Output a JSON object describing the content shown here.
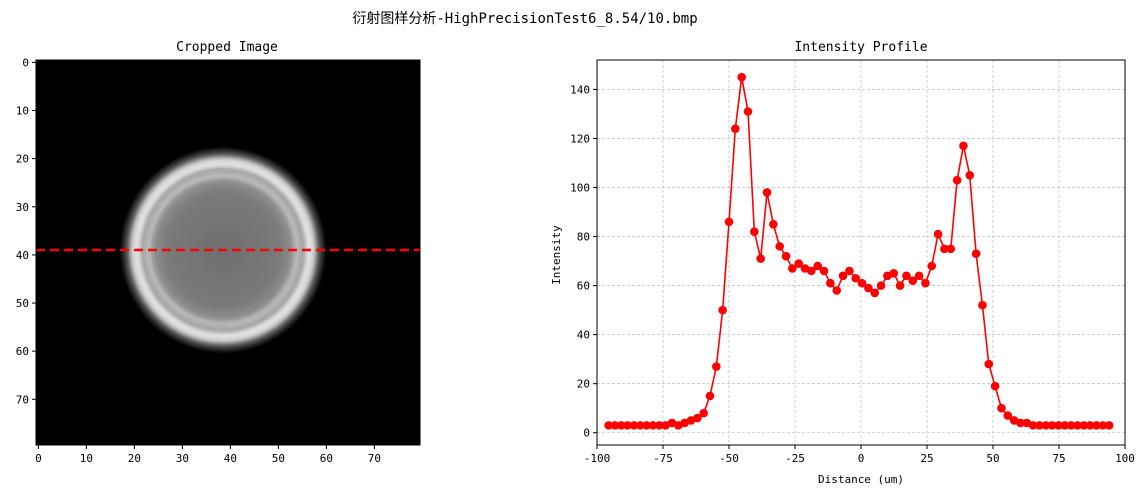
{
  "figure": {
    "suptitle": "衍射图样分析-HighPrecisionTest6_8.54/10.bmp"
  },
  "image_panel": {
    "title": "Cropped Image",
    "x_ticks": [
      "0",
      "10",
      "20",
      "30",
      "40",
      "50",
      "60",
      "70"
    ],
    "y_ticks": [
      "0",
      "10",
      "20",
      "30",
      "40",
      "50",
      "60",
      "70"
    ],
    "image_size": 80,
    "ring_center": [
      40,
      40
    ],
    "cut_row": 39,
    "line_color": "#ff0000"
  },
  "chart_data": {
    "type": "line",
    "title": "Intensity Profile",
    "xlabel": "Distance (um)",
    "ylabel": "Intensity",
    "xlim": [
      -100,
      100
    ],
    "ylim": [
      -5,
      152
    ],
    "x_ticks": [
      -100,
      -75,
      -50,
      -25,
      0,
      25,
      50,
      75,
      100
    ],
    "y_ticks": [
      0,
      20,
      40,
      60,
      80,
      100,
      120,
      140
    ],
    "grid": true,
    "color": "#ff0000",
    "marker": "circle",
    "x": [
      -95.6,
      -93.2,
      -90.8,
      -88.4,
      -86.0,
      -83.6,
      -81.2,
      -78.8,
      -76.4,
      -74.0,
      -71.6,
      -69.2,
      -66.8,
      -64.4,
      -62.0,
      -59.6,
      -57.2,
      -54.8,
      -52.4,
      -50.0,
      -47.6,
      -45.2,
      -42.8,
      -40.4,
      -38.0,
      -35.6,
      -33.2,
      -30.8,
      -28.4,
      -26.0,
      -23.6,
      -21.2,
      -18.8,
      -16.4,
      -14.0,
      -11.6,
      -9.2,
      -6.8,
      -4.4,
      -2.0,
      0.4,
      2.8,
      5.2,
      7.6,
      10.0,
      12.4,
      14.8,
      17.2,
      19.6,
      22.0,
      24.4,
      26.8,
      29.2,
      31.6,
      34.0,
      36.4,
      38.8,
      41.2,
      43.6,
      46.0,
      48.4,
      50.8,
      53.2,
      55.6,
      58.0,
      60.4,
      62.8,
      65.2,
      67.6,
      70.0,
      72.4,
      74.8,
      77.2,
      79.6,
      82.0,
      84.4,
      86.8,
      89.2,
      91.6,
      94.0
    ],
    "values": [
      3,
      3,
      3,
      3,
      3,
      3,
      3,
      3,
      3,
      3,
      4,
      3,
      4,
      5,
      6,
      8,
      15,
      27,
      50,
      86,
      124,
      145,
      131,
      82,
      71,
      98,
      85,
      76,
      72,
      67,
      69,
      67,
      66,
      68,
      66,
      61,
      58,
      64,
      66,
      63,
      61,
      59,
      57,
      60,
      64,
      65,
      60,
      64,
      62,
      64,
      61,
      68,
      81,
      75,
      75,
      103,
      117,
      105,
      73,
      52,
      28,
      19,
      10,
      7,
      5,
      4,
      4,
      3,
      3,
      3,
      3,
      3,
      3,
      3,
      3,
      3,
      3,
      3,
      3,
      3
    ]
  }
}
